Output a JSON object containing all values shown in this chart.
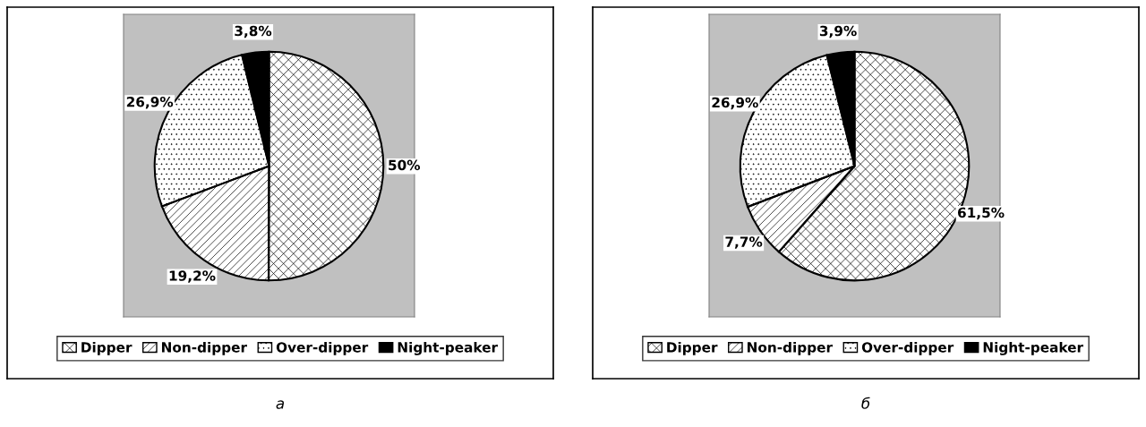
{
  "chart_data": [
    {
      "type": "pie",
      "categories": [
        "Dipper",
        "Non-dipper",
        "Over-dipper",
        "Night-peaker"
      ],
      "values": [
        50,
        19.2,
        26.9,
        3.8
      ],
      "value_labels": [
        "50%",
        "19,2%",
        "26,9%",
        "3,8%"
      ],
      "colors": [
        "#ffffff",
        "#ffffff",
        "#ffffff",
        "#000000"
      ],
      "legend": "bottom",
      "annotations": [
        "а"
      ]
    },
    {
      "type": "pie",
      "categories": [
        "Dipper",
        "Non-dipper",
        "Over-dipper",
        "Night-peaker"
      ],
      "values": [
        61.5,
        7.7,
        26.9,
        3.9
      ],
      "value_labels": [
        "61,5%",
        "7,7%",
        "26,9%",
        "3,9%"
      ],
      "colors": [
        "#ffffff",
        "#ffffff",
        "#ffffff",
        "#000000"
      ],
      "legend": "bottom",
      "annotations": [
        "б"
      ]
    }
  ]
}
